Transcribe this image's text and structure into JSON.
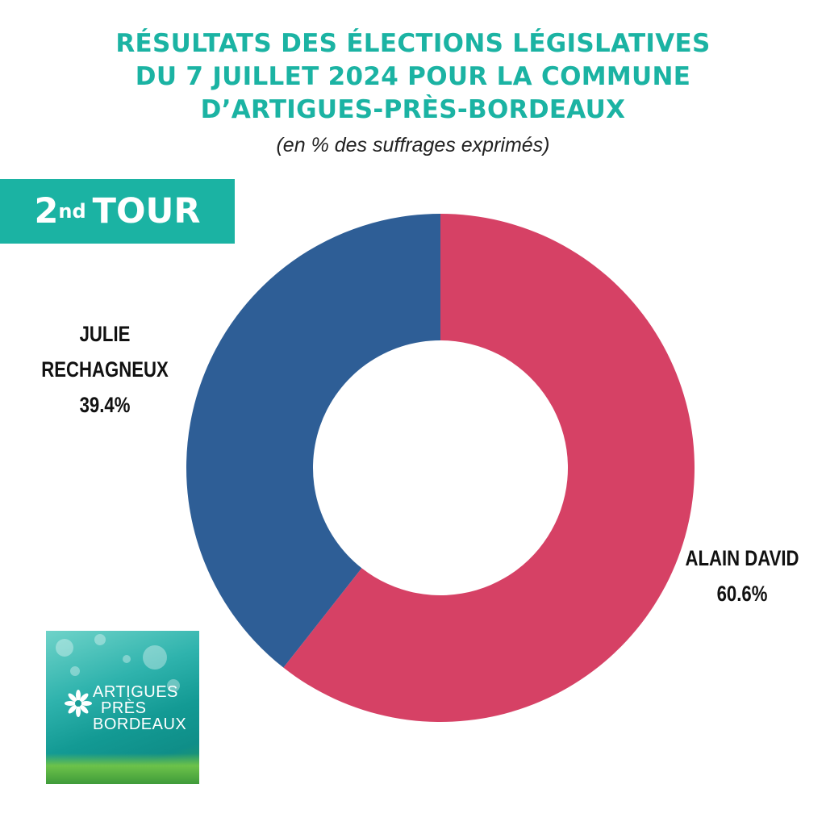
{
  "title_lines": [
    "RÉSULTATS DES ÉLECTIONS LÉGISLATIVES",
    "DU 7 JUILLET 2024 POUR LA COMMUNE",
    "D’ARTIGUES-PRÈS-BORDEAUX"
  ],
  "subtitle": "(en % des suffrages exprimés)",
  "tour": {
    "number": "2",
    "suffix": "nd",
    "word": "TOUR"
  },
  "logo": {
    "lines": [
      "ARTIGUES",
      "PRÈS",
      "BORDEAUX"
    ]
  },
  "chart_data": {
    "type": "pie",
    "donut": true,
    "slices": [
      {
        "name": "ALAIN DAVID",
        "value": 60.6,
        "label": "60.6%",
        "color": "#d64165"
      },
      {
        "name": "JULIE RECHAGNEUX",
        "value": 39.4,
        "label": "39.4%",
        "color": "#2e5e96"
      }
    ]
  }
}
